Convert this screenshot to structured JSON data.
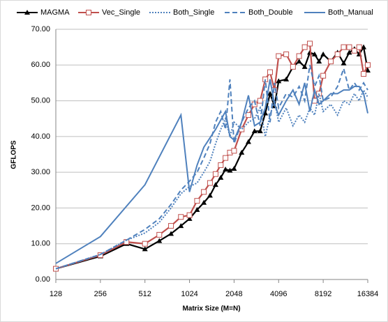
{
  "chart_data": {
    "type": "line",
    "x_label": "Matrix Size (M=N)",
    "y_label": "GFLOPS",
    "x": [
      128,
      256,
      384,
      512,
      640,
      768,
      896,
      1024,
      1152,
      1280,
      1408,
      1536,
      1664,
      1792,
      1920,
      2048,
      2304,
      2560,
      2816,
      3072,
      3328,
      3584,
      3840,
      4096,
      4608,
      5120,
      5632,
      6144,
      6656,
      7168,
      7680,
      8192,
      9216,
      10240,
      11264,
      12288,
      13312,
      14336,
      15360,
      16384
    ],
    "series": [
      {
        "name": "MAGMA",
        "color": "#000000",
        "style": "solid",
        "marker": "triangle",
        "values": [
          3.0,
          6.5,
          10.0,
          8.5,
          10.8,
          12.8,
          15.0,
          17.0,
          19.5,
          21.5,
          23.5,
          26.5,
          28.5,
          30.8,
          30.5,
          31.0,
          35.5,
          38.5,
          41.5,
          41.5,
          46.5,
          52.0,
          48.5,
          55.5,
          56.0,
          59.5,
          61.0,
          59.5,
          63.5,
          63.0,
          61.0,
          63.0,
          61.0,
          63.5,
          60.5,
          63.5,
          64.5,
          63.0,
          65.0,
          58.5
        ]
      },
      {
        "name": "Vec_Single",
        "color": "#c0504d",
        "style": "solid",
        "marker": "square",
        "values": [
          3.0,
          6.8,
          10.5,
          10.0,
          12.5,
          15.0,
          17.5,
          18.0,
          22.0,
          24.5,
          27.0,
          29.5,
          32.0,
          34.0,
          35.5,
          36.0,
          42.0,
          46.0,
          49.0,
          50.0,
          56.0,
          58.0,
          53.0,
          62.5,
          63.0,
          59.5,
          62.5,
          65.0,
          66.0,
          50.0,
          52.0,
          57.0,
          61.0,
          63.0,
          65.0,
          65.0,
          64.0,
          65.0,
          57.5,
          60.0
        ]
      },
      {
        "name": "Both_Single",
        "color": "#4f81bd",
        "style": "dotted",
        "marker": "none",
        "values": [
          3.0,
          7.0,
          11.0,
          13.0,
          16.0,
          20.0,
          24.0,
          26.0,
          27.0,
          30.0,
          33.0,
          38.0,
          42.0,
          45.0,
          40.0,
          44.0,
          42.0,
          44.0,
          45.0,
          48.0,
          40.0,
          46.0,
          50.0,
          44.0,
          48.0,
          43.0,
          46.0,
          44.0,
          48.0,
          46.0,
          52.0,
          47.0,
          49.0,
          46.0,
          50.0,
          49.0,
          52.0,
          50.0,
          53.0,
          51.0
        ]
      },
      {
        "name": "Both_Double",
        "color": "#4f81bd",
        "style": "dashed",
        "marker": "none",
        "values": [
          3.0,
          7.0,
          11.0,
          14.0,
          17.0,
          21.0,
          25.0,
          27.5,
          30.0,
          34.0,
          38.0,
          44.0,
          47.0,
          42.0,
          56.0,
          38.0,
          44.0,
          48.0,
          50.0,
          43.0,
          56.0,
          44.0,
          55.0,
          48.0,
          52.0,
          51.0,
          54.0,
          50.0,
          60.0,
          54.0,
          57.0,
          50.0,
          51.0,
          54.0,
          59.0,
          53.0,
          55.0,
          53.0,
          55.0,
          53.0
        ]
      },
      {
        "name": "Both_Manual",
        "color": "#4f81bd",
        "style": "solid",
        "marker": "none",
        "x": [
          128,
          256,
          512,
          896,
          1024,
          1152,
          1280,
          1536,
          1792,
          1920,
          2048,
          2304,
          2560,
          2816,
          3072,
          3328,
          3584,
          3840,
          4096,
          4608,
          5120,
          5632,
          6144,
          6656,
          7168,
          7680,
          8192,
          9216,
          10240,
          11264,
          12288,
          13312,
          14336,
          15360,
          16384
        ],
        "values": [
          4.5,
          12.0,
          26.5,
          46.0,
          24.5,
          32.0,
          37.0,
          42.0,
          47.0,
          40.0,
          39.0,
          44.0,
          51.5,
          43.0,
          44.0,
          48.0,
          56.0,
          49.0,
          46.0,
          50.0,
          53.0,
          49.0,
          55.0,
          47.0,
          53.0,
          49.0,
          50.0,
          52.0,
          52.0,
          53.0,
          53.0,
          54.0,
          54.0,
          52.0,
          46.5
        ]
      }
    ],
    "log_x": 2,
    "xlim": [
      128,
      16384
    ],
    "xticks": [
      128,
      256,
      512,
      1024,
      2048,
      4096,
      8192,
      16384
    ],
    "ylim": [
      0,
      70
    ],
    "yticks": [
      {
        "value": 0,
        "label": "0.00"
      },
      {
        "value": 10,
        "label": "10.00"
      },
      {
        "value": 20,
        "label": "20.00"
      },
      {
        "value": 30,
        "label": "30.00"
      },
      {
        "value": 40,
        "label": "40.00"
      },
      {
        "value": 50,
        "label": "50.00"
      },
      {
        "value": 60,
        "label": "60.00"
      },
      {
        "value": 70,
        "label": "70.00"
      }
    ],
    "grid": true,
    "legend": "top"
  }
}
